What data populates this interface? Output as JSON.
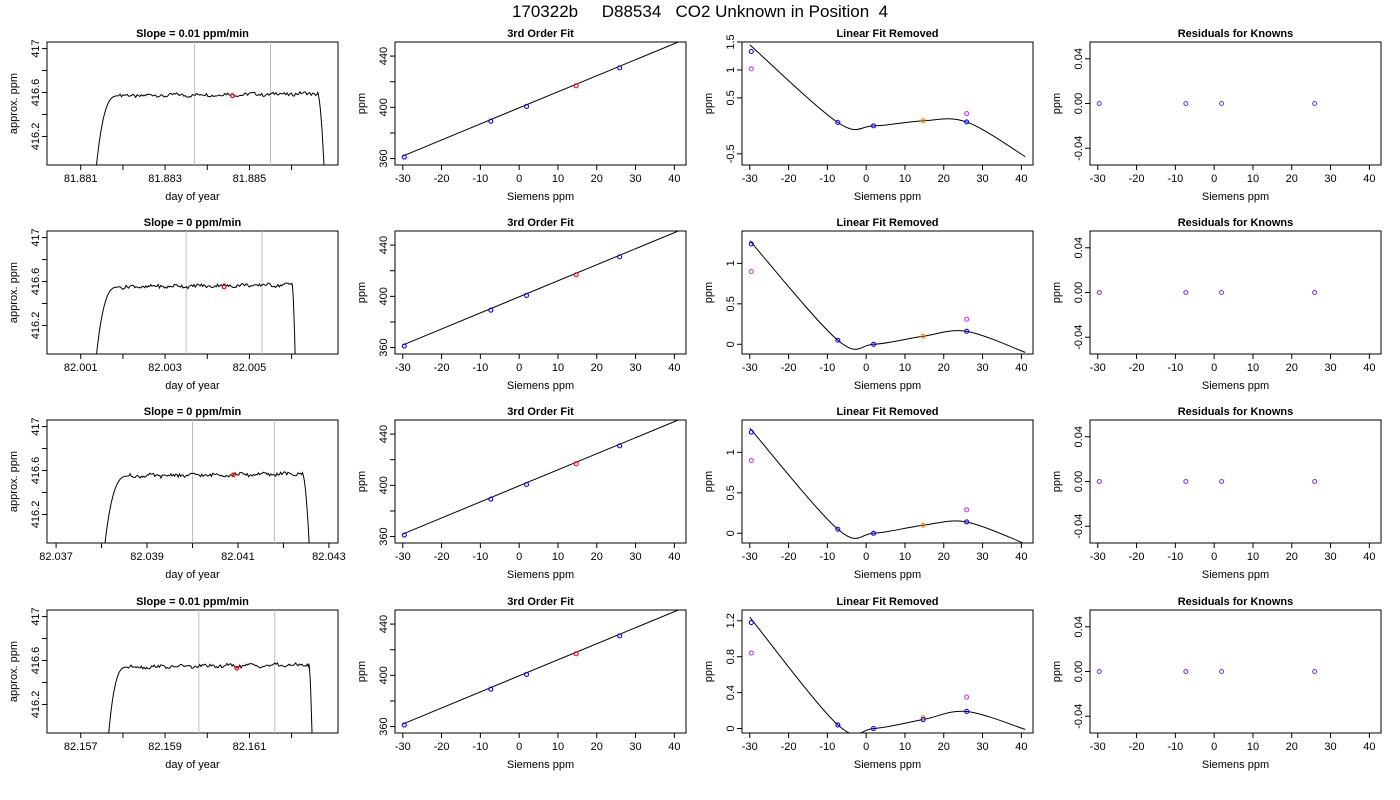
{
  "page": {
    "title": "170322b     D88534   CO2 Unknown in Position  4"
  },
  "chart_data": [
    {
      "type": "line",
      "row": 0,
      "col": 0,
      "title": "Slope =  0.01  ppm/min",
      "xlabel": "day of year",
      "ylabel": "approx. ppm",
      "xlim": [
        81.8802,
        81.8871
      ],
      "ylim": [
        415.94,
        417.06
      ],
      "xticks": [
        81.881,
        81.883,
        81.885
      ],
      "xminor": [
        81.882,
        81.884,
        81.886
      ],
      "yticks": [
        416.2,
        416.6,
        417.0
      ],
      "yminor": [
        416.4,
        416.8
      ],
      "vlines": [
        81.8837,
        81.8855
      ],
      "rise": [
        81.8813,
        81.8819
      ],
      "fall": [
        81.8866,
        81.8868
      ],
      "plateau": 416.57,
      "marker": {
        "x": 81.8846,
        "y": 416.57,
        "color": "#ff0000"
      }
    },
    {
      "type": "line",
      "row": 0,
      "col": 1,
      "title": "3rd Order Fit",
      "xlabel": "Siemens ppm",
      "ylabel": "ppm",
      "xlim": [
        -32,
        43
      ],
      "ylim": [
        355,
        451
      ],
      "xticks": [
        -30,
        -20,
        -10,
        0,
        10,
        20,
        30,
        40
      ],
      "yticks": [
        360,
        400,
        440
      ],
      "yminor": [
        380,
        420
      ],
      "curve": {
        "x": [
          -30,
          41
        ],
        "y": [
          362,
          451
        ]
      },
      "points": [
        {
          "x": -29.6,
          "y": 361.2,
          "color": "#0000ff"
        },
        {
          "x": -7.3,
          "y": 389.2,
          "color": "#0000ff"
        },
        {
          "x": 1.9,
          "y": 400.7,
          "color": "#0000ff"
        },
        {
          "x": 14.7,
          "y": 416.8,
          "color": "#ff0000"
        },
        {
          "x": 25.9,
          "y": 430.8,
          "color": "#0000ff"
        }
      ]
    },
    {
      "type": "line",
      "row": 0,
      "col": 2,
      "title": "Linear Fit Removed",
      "xlabel": "Siemens ppm",
      "ylabel": "ppm",
      "xlim": [
        -32,
        43
      ],
      "ylim": [
        -0.7,
        1.5
      ],
      "xticks": [
        -30,
        -20,
        -10,
        0,
        10,
        20,
        30,
        40
      ],
      "yticks": [
        -0.5,
        0.5,
        1.0,
        1.5
      ],
      "curve": {
        "x": [
          -30,
          -7.3,
          1.9,
          14.7,
          25.9,
          41
        ],
        "y": [
          1.45,
          0.06,
          0.0,
          0.09,
          0.07,
          -0.55
        ]
      },
      "points": [
        {
          "x": -29.6,
          "y": 1.33,
          "color": "#0000ff"
        },
        {
          "x": -29.6,
          "y": 1.02,
          "color": "#cc33ff"
        },
        {
          "x": -7.3,
          "y": 0.06,
          "color": "#0000ff"
        },
        {
          "x": 1.9,
          "y": 0.0,
          "color": "#0000ff"
        },
        {
          "x": 14.7,
          "y": 0.09,
          "color": "#ff8800"
        },
        {
          "x": 25.9,
          "y": 0.07,
          "color": "#0000ff"
        },
        {
          "x": 25.9,
          "y": 0.22,
          "color": "#cc33ff"
        }
      ]
    },
    {
      "type": "scatter",
      "row": 0,
      "col": 3,
      "title": "Residuals for Knowns",
      "xlabel": "Siemens ppm",
      "ylabel": "ppm",
      "xlim": [
        -32,
        43
      ],
      "ylim": [
        -0.055,
        0.055
      ],
      "xticks": [
        -30,
        -20,
        -10,
        0,
        10,
        20,
        30,
        40
      ],
      "yticks": [
        -0.04,
        0.0,
        0.04
      ],
      "ytick_labels": [
        "-0.04",
        "0.00",
        "0.04"
      ],
      "points": [
        {
          "x": -29.6,
          "y": 0.0,
          "color": "#7f33ff"
        },
        {
          "x": -7.3,
          "y": 0.0,
          "color": "#7f33ff"
        },
        {
          "x": 1.9,
          "y": 0.0,
          "color": "#7f33ff"
        },
        {
          "x": 25.9,
          "y": 0.0,
          "color": "#7f33ff"
        }
      ]
    },
    {
      "type": "line",
      "row": 1,
      "col": 0,
      "title": "Slope =  0  ppm/min",
      "xlabel": "day of year",
      "ylabel": "approx. ppm",
      "xlim": [
        82.0002,
        82.0071
      ],
      "ylim": [
        415.94,
        417.06
      ],
      "xticks": [
        82.001,
        82.003,
        82.005
      ],
      "xminor": [
        82.002,
        82.004,
        82.006
      ],
      "yticks": [
        416.2,
        416.6,
        417.0
      ],
      "yminor": [
        416.4,
        416.8
      ],
      "vlines": [
        82.0035,
        82.0053
      ],
      "rise": [
        82.0013,
        82.0019
      ],
      "fall": [
        82.006,
        82.0061
      ],
      "plateau": 416.55,
      "marker": {
        "x": 82.0044,
        "y": 416.55,
        "color": "#ff0000"
      }
    },
    {
      "type": "line",
      "row": 1,
      "col": 1,
      "title": "3rd Order Fit",
      "xlabel": "Siemens ppm",
      "ylabel": "ppm",
      "xlim": [
        -32,
        43
      ],
      "ylim": [
        355,
        451
      ],
      "xticks": [
        -30,
        -20,
        -10,
        0,
        10,
        20,
        30,
        40
      ],
      "yticks": [
        360,
        400,
        440
      ],
      "yminor": [
        380,
        420
      ],
      "curve": {
        "x": [
          -30,
          41
        ],
        "y": [
          362,
          451
        ]
      },
      "points": [
        {
          "x": -29.6,
          "y": 361.2,
          "color": "#0000ff"
        },
        {
          "x": -7.3,
          "y": 389.2,
          "color": "#0000ff"
        },
        {
          "x": 1.9,
          "y": 400.7,
          "color": "#0000ff"
        },
        {
          "x": 14.7,
          "y": 416.8,
          "color": "#ff0000"
        },
        {
          "x": 25.9,
          "y": 430.8,
          "color": "#0000ff"
        }
      ]
    },
    {
      "type": "line",
      "row": 1,
      "col": 2,
      "title": "Linear Fit Removed",
      "xlabel": "Siemens ppm",
      "ylabel": "ppm",
      "xlim": [
        -32,
        43
      ],
      "ylim": [
        -0.12,
        1.4
      ],
      "xticks": [
        -30,
        -20,
        -10,
        0,
        10,
        20,
        30,
        40
      ],
      "yticks": [
        0.0,
        0.5,
        1.0
      ],
      "curve": {
        "x": [
          -30,
          -7.3,
          1.9,
          14.7,
          25.9,
          41
        ],
        "y": [
          1.28,
          0.05,
          0.0,
          0.1,
          0.16,
          -0.1
        ]
      },
      "points": [
        {
          "x": -29.6,
          "y": 1.24,
          "color": "#0000ff"
        },
        {
          "x": -29.6,
          "y": 0.9,
          "color": "#cc33ff"
        },
        {
          "x": -7.3,
          "y": 0.05,
          "color": "#0000ff"
        },
        {
          "x": 1.9,
          "y": 0.0,
          "color": "#0000ff"
        },
        {
          "x": 14.7,
          "y": 0.1,
          "color": "#ff8800"
        },
        {
          "x": 25.9,
          "y": 0.16,
          "color": "#0000ff"
        },
        {
          "x": 25.9,
          "y": 0.31,
          "color": "#cc33ff"
        }
      ]
    },
    {
      "type": "scatter",
      "row": 1,
      "col": 3,
      "title": "Residuals for Knowns",
      "xlabel": "Siemens ppm",
      "ylabel": "ppm",
      "xlim": [
        -32,
        43
      ],
      "ylim": [
        -0.055,
        0.055
      ],
      "xticks": [
        -30,
        -20,
        -10,
        0,
        10,
        20,
        30,
        40
      ],
      "yticks": [
        -0.04,
        0.0,
        0.04
      ],
      "ytick_labels": [
        "-0.04",
        "0.00",
        "0.04"
      ],
      "points": [
        {
          "x": -29.6,
          "y": 0.0,
          "color": "#7f33ff"
        },
        {
          "x": -7.3,
          "y": 0.0,
          "color": "#7f33ff"
        },
        {
          "x": 1.9,
          "y": 0.0,
          "color": "#7f33ff"
        },
        {
          "x": 25.9,
          "y": 0.0,
          "color": "#7f33ff"
        }
      ]
    },
    {
      "type": "line",
      "row": 2,
      "col": 0,
      "title": "Slope =  0  ppm/min",
      "xlabel": "day of year",
      "ylabel": "approx. ppm",
      "xlim": [
        82.0368,
        82.0432
      ],
      "ylim": [
        415.94,
        417.06
      ],
      "xticks": [
        82.037,
        82.039,
        82.041,
        82.043
      ],
      "xminor": [
        82.038,
        82.04,
        82.042
      ],
      "yticks": [
        416.2,
        416.6,
        417.0
      ],
      "yminor": [
        416.4,
        416.8
      ],
      "vlines": [
        82.04,
        82.0418
      ],
      "rise": [
        82.038,
        82.0386
      ],
      "fall": [
        82.0424,
        82.0426
      ],
      "plateau": 416.55,
      "marker": {
        "x": 82.0409,
        "y": 416.56,
        "color": "#ff0000"
      }
    },
    {
      "type": "line",
      "row": 2,
      "col": 1,
      "title": "3rd Order Fit",
      "xlabel": "Siemens ppm",
      "ylabel": "ppm",
      "xlim": [
        -32,
        43
      ],
      "ylim": [
        355,
        451
      ],
      "xticks": [
        -30,
        -20,
        -10,
        0,
        10,
        20,
        30,
        40
      ],
      "yticks": [
        360,
        400,
        440
      ],
      "yminor": [
        380,
        420
      ],
      "curve": {
        "x": [
          -30,
          41
        ],
        "y": [
          362,
          451
        ]
      },
      "points": [
        {
          "x": -29.6,
          "y": 361.2,
          "color": "#0000ff"
        },
        {
          "x": -7.3,
          "y": 389.2,
          "color": "#0000ff"
        },
        {
          "x": 1.9,
          "y": 400.7,
          "color": "#0000ff"
        },
        {
          "x": 14.7,
          "y": 416.8,
          "color": "#ff0000"
        },
        {
          "x": 25.9,
          "y": 430.8,
          "color": "#0000ff"
        }
      ]
    },
    {
      "type": "line",
      "row": 2,
      "col": 2,
      "title": "Linear Fit Removed",
      "xlabel": "Siemens ppm",
      "ylabel": "ppm",
      "xlim": [
        -32,
        43
      ],
      "ylim": [
        -0.12,
        1.4
      ],
      "xticks": [
        -30,
        -20,
        -10,
        0,
        10,
        20,
        30,
        40
      ],
      "yticks": [
        0.0,
        0.5,
        1.0
      ],
      "curve": {
        "x": [
          -30,
          -7.3,
          1.9,
          14.7,
          25.9,
          41
        ],
        "y": [
          1.3,
          0.05,
          0.0,
          0.1,
          0.14,
          -0.13
        ]
      },
      "points": [
        {
          "x": -29.6,
          "y": 1.25,
          "color": "#0000ff"
        },
        {
          "x": -29.6,
          "y": 0.9,
          "color": "#cc33ff"
        },
        {
          "x": -7.3,
          "y": 0.05,
          "color": "#0000ff"
        },
        {
          "x": 1.9,
          "y": 0.0,
          "color": "#0000ff"
        },
        {
          "x": 14.7,
          "y": 0.1,
          "color": "#ff8800"
        },
        {
          "x": 25.9,
          "y": 0.14,
          "color": "#0000ff"
        },
        {
          "x": 25.9,
          "y": 0.29,
          "color": "#cc33ff"
        }
      ]
    },
    {
      "type": "scatter",
      "row": 2,
      "col": 3,
      "title": "Residuals for Knowns",
      "xlabel": "Siemens ppm",
      "ylabel": "ppm",
      "xlim": [
        -32,
        43
      ],
      "ylim": [
        -0.055,
        0.055
      ],
      "xticks": [
        -30,
        -20,
        -10,
        0,
        10,
        20,
        30,
        40
      ],
      "yticks": [
        -0.04,
        0.0,
        0.04
      ],
      "ytick_labels": [
        "-0.04",
        "0.00",
        "0.04"
      ],
      "points": [
        {
          "x": -29.6,
          "y": 0.0,
          "color": "#7f33ff"
        },
        {
          "x": -7.3,
          "y": 0.0,
          "color": "#7f33ff"
        },
        {
          "x": 1.9,
          "y": 0.0,
          "color": "#7f33ff"
        },
        {
          "x": 25.9,
          "y": 0.0,
          "color": "#7f33ff"
        }
      ]
    },
    {
      "type": "line",
      "row": 3,
      "col": 0,
      "title": "Slope =  0.01  ppm/min",
      "xlabel": "day of year",
      "ylabel": "approx. ppm",
      "xlim": [
        82.1562,
        82.1631
      ],
      "ylim": [
        415.94,
        417.06
      ],
      "xticks": [
        82.157,
        82.159,
        82.161
      ],
      "xminor": [
        82.158,
        82.16,
        82.162
      ],
      "yticks": [
        416.2,
        416.6,
        417.0
      ],
      "yminor": [
        416.4,
        416.8
      ],
      "vlines": [
        82.1598,
        82.1616
      ],
      "rise": [
        82.1576,
        82.1581
      ],
      "fall": [
        82.1624,
        82.1625
      ],
      "plateau": 416.54,
      "marker": {
        "x": 82.1607,
        "y": 416.53,
        "color": "#ff0000"
      }
    },
    {
      "type": "line",
      "row": 3,
      "col": 1,
      "title": "3rd Order Fit",
      "xlabel": "Siemens ppm",
      "ylabel": "ppm",
      "xlim": [
        -32,
        43
      ],
      "ylim": [
        355,
        451
      ],
      "xticks": [
        -30,
        -20,
        -10,
        0,
        10,
        20,
        30,
        40
      ],
      "yticks": [
        360,
        400,
        440
      ],
      "yminor": [
        380,
        420
      ],
      "curve": {
        "x": [
          -30,
          41
        ],
        "y": [
          362,
          451
        ]
      },
      "points": [
        {
          "x": -29.6,
          "y": 361.2,
          "color": "#0000ff"
        },
        {
          "x": -7.3,
          "y": 389.2,
          "color": "#0000ff"
        },
        {
          "x": 1.9,
          "y": 400.7,
          "color": "#0000ff"
        },
        {
          "x": 14.7,
          "y": 416.8,
          "color": "#ff0000"
        },
        {
          "x": 25.9,
          "y": 430.8,
          "color": "#0000ff"
        }
      ]
    },
    {
      "type": "line",
      "row": 3,
      "col": 2,
      "title": "Linear Fit Removed",
      "xlabel": "Siemens ppm",
      "ylabel": "ppm",
      "xlim": [
        -32,
        43
      ],
      "ylim": [
        -0.05,
        1.32
      ],
      "xticks": [
        -30,
        -20,
        -10,
        0,
        10,
        20,
        30,
        40
      ],
      "yticks": [
        0.0,
        0.4,
        0.8,
        1.2
      ],
      "curve": {
        "x": [
          -30,
          -7.3,
          1.9,
          14.7,
          25.9,
          41
        ],
        "y": [
          1.24,
          0.04,
          0.0,
          0.1,
          0.19,
          -0.01
        ]
      },
      "points": [
        {
          "x": -29.6,
          "y": 1.18,
          "color": "#0000ff"
        },
        {
          "x": -29.6,
          "y": 0.84,
          "color": "#cc33ff"
        },
        {
          "x": -7.3,
          "y": 0.04,
          "color": "#0000ff"
        },
        {
          "x": 1.9,
          "y": 0.0,
          "color": "#0000ff"
        },
        {
          "x": 14.7,
          "y": 0.12,
          "color": "#ff8800"
        },
        {
          "x": 14.7,
          "y": 0.1,
          "color": "#0000ff"
        },
        {
          "x": 25.9,
          "y": 0.19,
          "color": "#0000ff"
        },
        {
          "x": 25.9,
          "y": 0.35,
          "color": "#cc33ff"
        }
      ]
    },
    {
      "type": "scatter",
      "row": 3,
      "col": 3,
      "title": "Residuals for Knowns",
      "xlabel": "Siemens ppm",
      "ylabel": "ppm",
      "xlim": [
        -32,
        43
      ],
      "ylim": [
        -0.055,
        0.055
      ],
      "xticks": [
        -30,
        -20,
        -10,
        0,
        10,
        20,
        30,
        40
      ],
      "yticks": [
        -0.04,
        0.0,
        0.04
      ],
      "ytick_labels": [
        "-0.04",
        "0.00",
        "0.04"
      ],
      "points": [
        {
          "x": -29.6,
          "y": 0.0,
          "color": "#7f33ff"
        },
        {
          "x": -7.3,
          "y": 0.0,
          "color": "#7f33ff"
        },
        {
          "x": 1.9,
          "y": 0.0,
          "color": "#7f33ff"
        },
        {
          "x": 25.9,
          "y": 0.0,
          "color": "#7f33ff"
        }
      ]
    }
  ]
}
